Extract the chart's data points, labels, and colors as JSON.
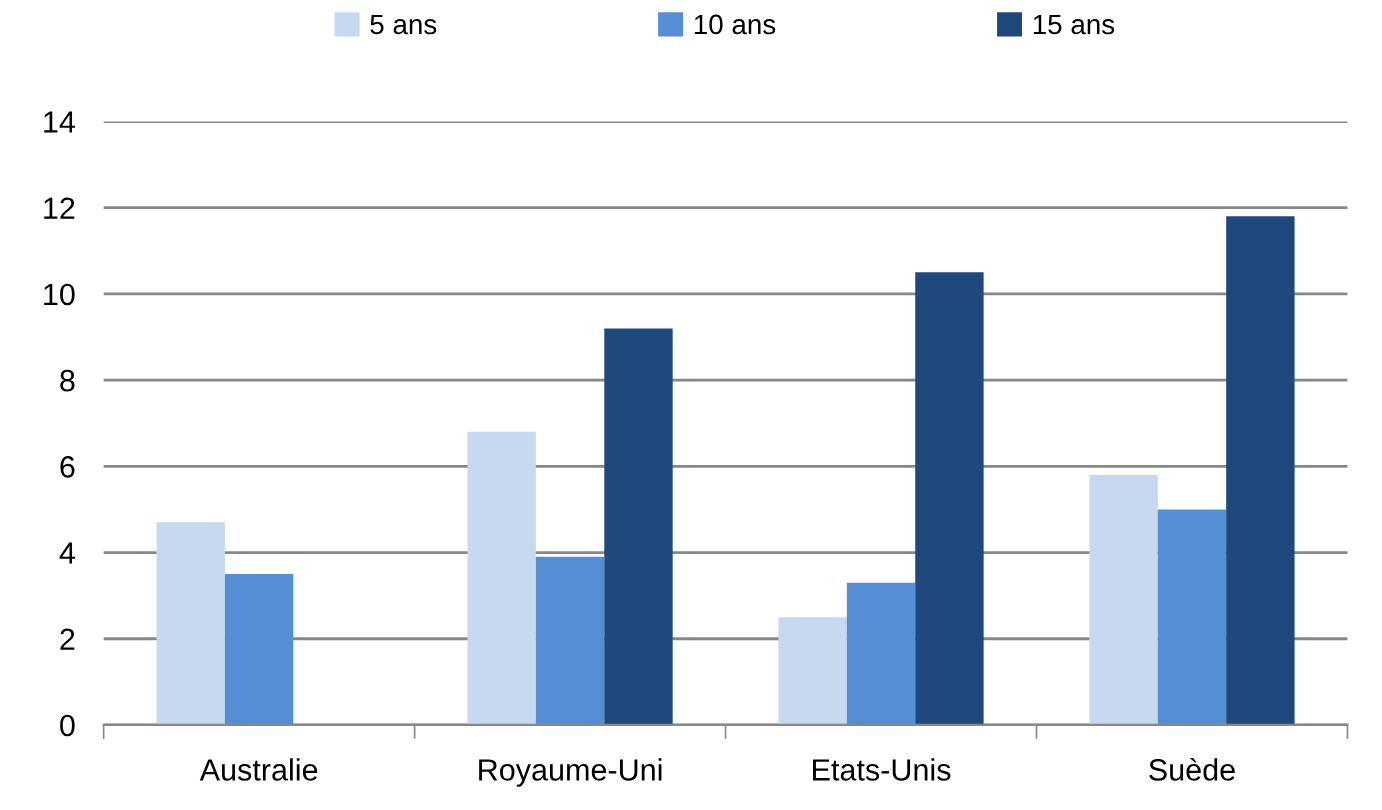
{
  "chart_data": {
    "type": "bar",
    "categories": [
      "Australie",
      "Royaume-Uni",
      "Etats-Unis",
      "Suède"
    ],
    "series": [
      {
        "name": "5 ans",
        "color": "#c6d9f1",
        "values": [
          4.7,
          6.8,
          2.5,
          5.8
        ]
      },
      {
        "name": "10 ans",
        "color": "#558ed5",
        "values": [
          3.5,
          3.9,
          3.3,
          5.0
        ]
      },
      {
        "name": "15 ans",
        "color": "#1f497d",
        "values": [
          null,
          9.2,
          10.5,
          11.8
        ]
      }
    ],
    "ylim": [
      0,
      14
    ],
    "yticks": [
      0,
      2,
      4,
      6,
      8,
      10,
      12,
      14
    ],
    "grid": "y",
    "legend": "top"
  }
}
